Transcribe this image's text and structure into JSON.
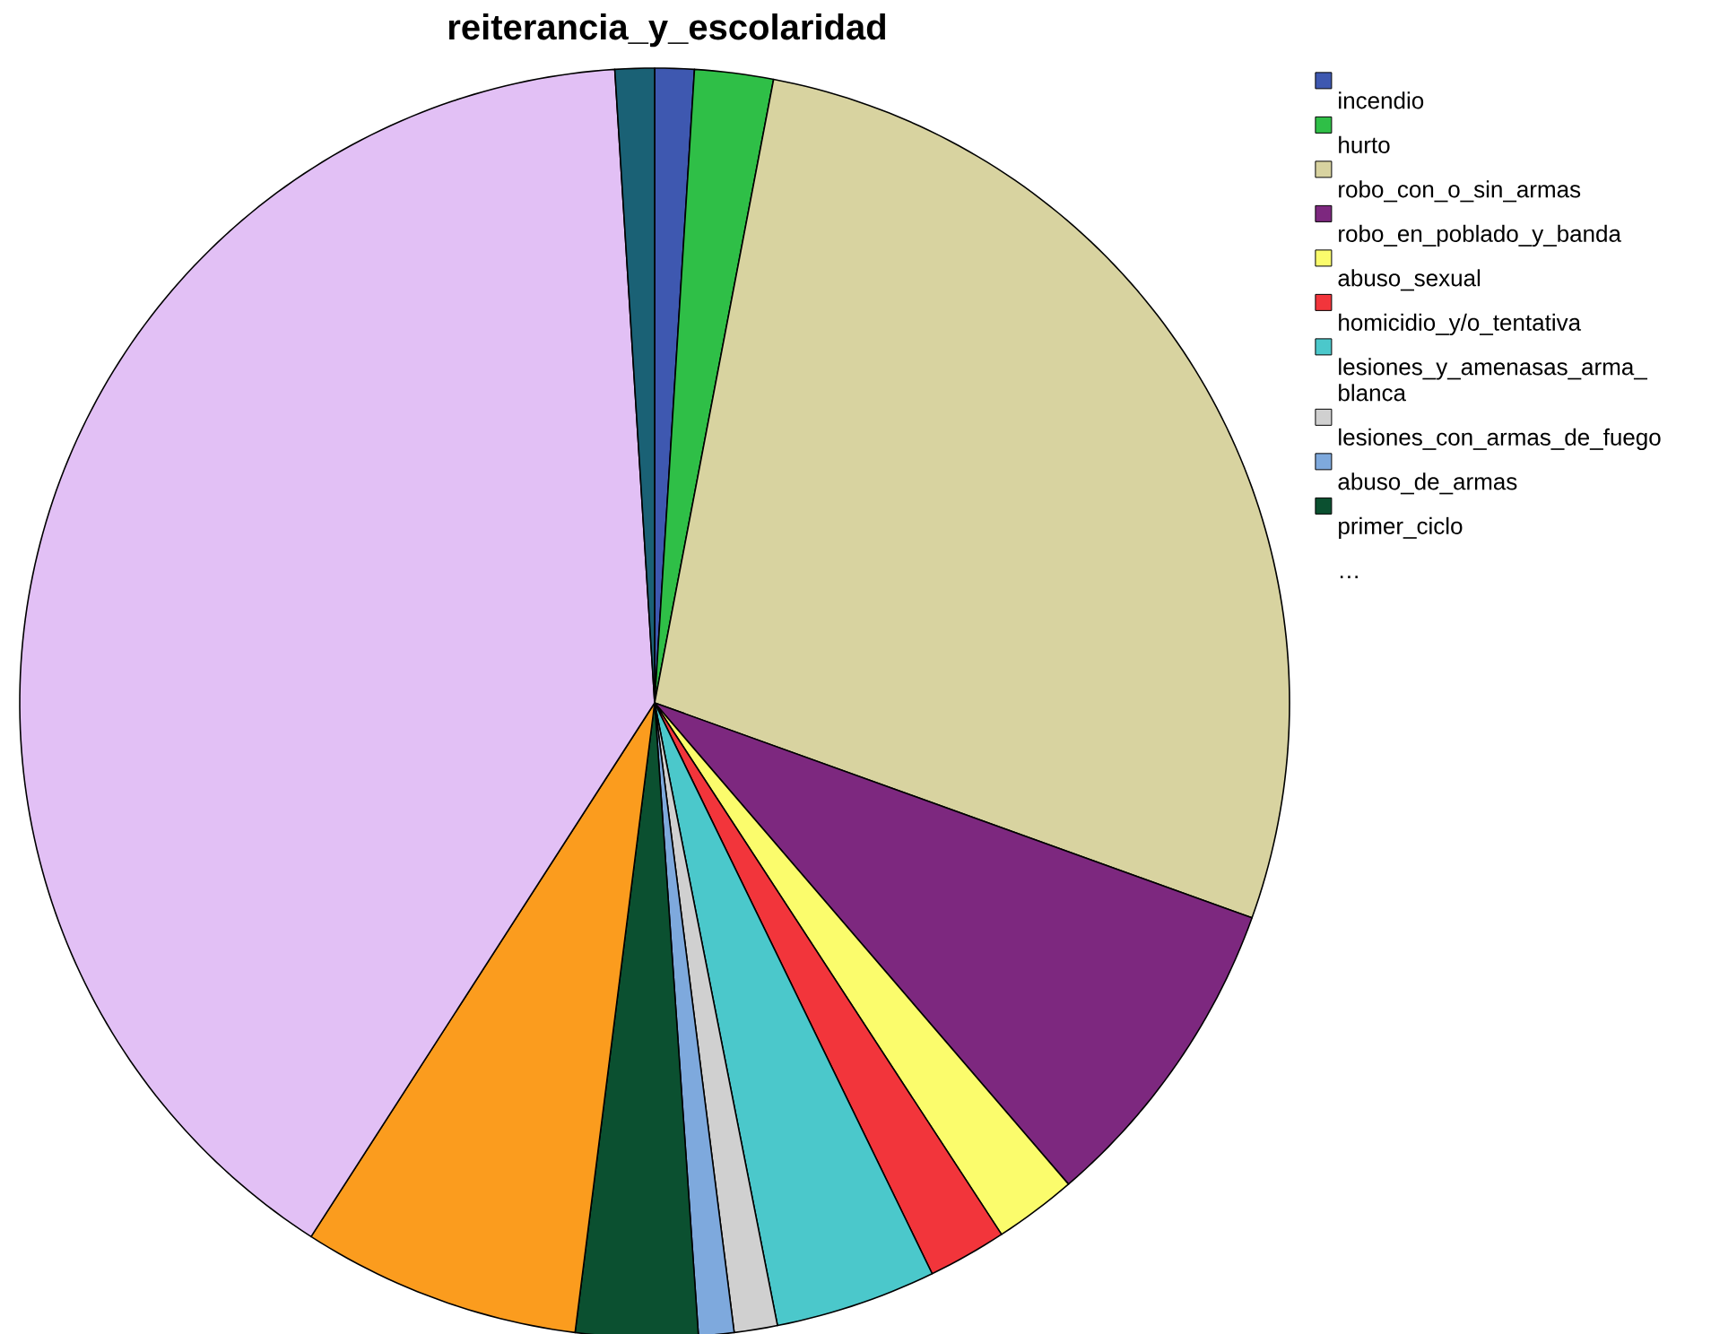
{
  "chart_data": {
    "type": "pie",
    "title": "reiterancia_y_escolaridad",
    "categories": [
      "incendio",
      "hurto",
      "robo_con_o_sin_armas",
      "robo_en_poblado_y_banda",
      "abuso_sexual",
      "homicidio_y/o_tentativa",
      "lesiones_y_amenasas_arma_blanca",
      "lesiones_con_armas_de_fuego",
      "abuso_de_armas",
      "primer_ciclo",
      null,
      null,
      null
    ],
    "values": [
      1.0,
      2.0,
      27.5,
      8.2,
      2.1,
      2.0,
      4.1,
      1.1,
      0.9,
      3.1,
      7.1,
      39.9,
      1.0
    ],
    "colors": [
      "#3e58b0",
      "#2fbf47",
      "#d8d3a0",
      "#7d287f",
      "#fbfc6c",
      "#f2353b",
      "#4bc8cb",
      "#d0d0d0",
      "#7ea9dd",
      "#0b5030",
      "#fb9c1e",
      "#e2c0f5",
      "#1a6175"
    ],
    "legend": "top right",
    "annotations": [
      "…"
    ]
  }
}
